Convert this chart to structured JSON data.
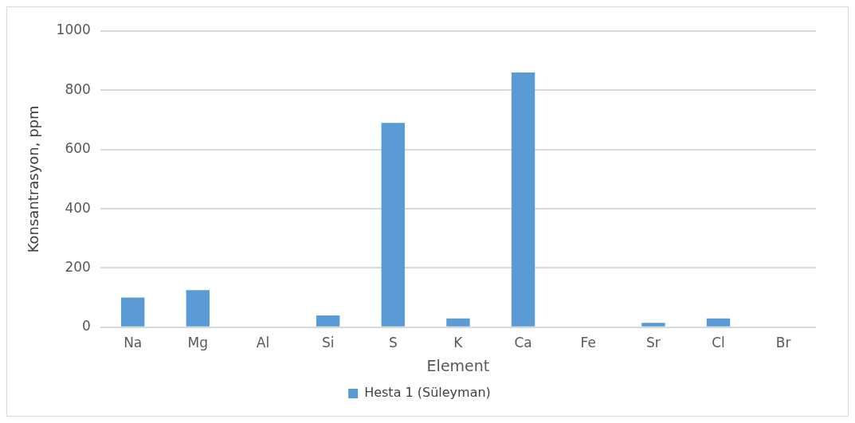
{
  "chart_data": {
    "type": "bar",
    "xlabel": "Element",
    "ylabel": "Konsantrasyon, ppm",
    "categories": [
      "Na",
      "Mg",
      "Al",
      "Si",
      "S",
      "K",
      "Ca",
      "Fe",
      "Sr",
      "Cl",
      "Br"
    ],
    "series": [
      {
        "name": "Hesta 1 (Süleyman)",
        "color": "#5b9bd5",
        "values": [
          100,
          125,
          0,
          40,
          690,
          30,
          860,
          0,
          15,
          30,
          0
        ]
      }
    ],
    "ylim": [
      0,
      1000
    ],
    "yticks": [
      0,
      200,
      400,
      600,
      800,
      1000
    ],
    "grid": "y",
    "legend": "bottom"
  }
}
